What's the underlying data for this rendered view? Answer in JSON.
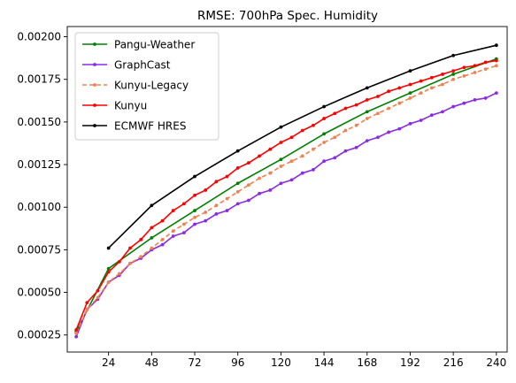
{
  "chart_data": {
    "type": "line",
    "title": "RMSE: 700hPa Spec. Humidity",
    "xlabel": "",
    "ylabel": "",
    "xlim": [
      1,
      246
    ],
    "ylim": [
      0.00015,
      0.00206
    ],
    "x_ticks": [
      24,
      48,
      72,
      96,
      120,
      144,
      168,
      192,
      216,
      240
    ],
    "y_ticks": [
      0.00025,
      0.0005,
      0.00075,
      0.001,
      0.00125,
      0.0015,
      0.00175,
      0.002
    ],
    "y_tick_labels": [
      "0.00025",
      "0.00050",
      "0.00075",
      "0.00100",
      "0.00125",
      "0.00150",
      "0.00175",
      "0.00200"
    ],
    "grid": false,
    "legend_position": "upper-left",
    "series": [
      {
        "name": "Pangu-Weather",
        "color": "#008000",
        "style": "solid",
        "x": [
          6,
          24,
          48,
          72,
          96,
          120,
          144,
          168,
          192,
          216,
          240
        ],
        "y": [
          0.00027,
          0.00064,
          0.00082,
          0.00098,
          0.00114,
          0.00128,
          0.00143,
          0.00156,
          0.00167,
          0.00178,
          0.00187
        ]
      },
      {
        "name": "GraphCast",
        "color": "#8a2be2",
        "style": "solid",
        "x": [
          6,
          12,
          18,
          24,
          30,
          36,
          42,
          48,
          54,
          60,
          66,
          72,
          78,
          84,
          90,
          96,
          102,
          108,
          114,
          120,
          126,
          132,
          138,
          144,
          150,
          156,
          162,
          168,
          174,
          180,
          186,
          192,
          198,
          204,
          210,
          216,
          222,
          228,
          234,
          240
        ],
        "y": [
          0.00024,
          0.0004,
          0.00046,
          0.00056,
          0.0006,
          0.00067,
          0.0007,
          0.00075,
          0.00078,
          0.00083,
          0.00085,
          0.0009,
          0.00092,
          0.00096,
          0.00098,
          0.00102,
          0.00104,
          0.00108,
          0.0011,
          0.00114,
          0.00116,
          0.0012,
          0.00122,
          0.00127,
          0.00129,
          0.00133,
          0.00135,
          0.00139,
          0.00141,
          0.00144,
          0.00146,
          0.00149,
          0.00151,
          0.00154,
          0.00156,
          0.00159,
          0.00161,
          0.00163,
          0.00164,
          0.00167
        ]
      },
      {
        "name": "Kunyu-Legacy",
        "color": "#f08050",
        "style": "dashed",
        "x": [
          6,
          12,
          18,
          24,
          30,
          36,
          42,
          48,
          54,
          60,
          66,
          72,
          78,
          84,
          90,
          96,
          102,
          108,
          114,
          120,
          126,
          132,
          138,
          144,
          150,
          156,
          162,
          168,
          174,
          180,
          186,
          192,
          198,
          204,
          210,
          216,
          222,
          228,
          234,
          240
        ],
        "y": [
          0.00026,
          0.0004,
          0.00047,
          0.00056,
          0.00061,
          0.00067,
          0.00071,
          0.00076,
          0.00081,
          0.00086,
          0.0009,
          0.00094,
          0.00097,
          0.00101,
          0.00105,
          0.00109,
          0.00113,
          0.00117,
          0.0012,
          0.00124,
          0.00127,
          0.0013,
          0.00134,
          0.00138,
          0.00141,
          0.00145,
          0.00148,
          0.00152,
          0.00155,
          0.00158,
          0.00161,
          0.00164,
          0.00167,
          0.0017,
          0.00172,
          0.00175,
          0.00177,
          0.00179,
          0.00181,
          0.00183
        ]
      },
      {
        "name": "Kunyu",
        "color": "#ff0000",
        "style": "solid",
        "x": [
          6,
          12,
          18,
          24,
          30,
          36,
          42,
          48,
          54,
          60,
          66,
          72,
          78,
          84,
          90,
          96,
          102,
          108,
          114,
          120,
          126,
          132,
          138,
          144,
          150,
          156,
          162,
          168,
          174,
          180,
          186,
          192,
          198,
          204,
          210,
          216,
          222,
          228,
          234,
          240
        ],
        "y": [
          0.00028,
          0.00044,
          0.00051,
          0.00062,
          0.00068,
          0.00076,
          0.00081,
          0.00088,
          0.00092,
          0.00098,
          0.00102,
          0.00107,
          0.0011,
          0.00115,
          0.00118,
          0.00123,
          0.00126,
          0.0013,
          0.00134,
          0.00138,
          0.00141,
          0.00145,
          0.00148,
          0.00152,
          0.00155,
          0.00158,
          0.0016,
          0.00163,
          0.00165,
          0.00168,
          0.0017,
          0.00172,
          0.00174,
          0.00176,
          0.00178,
          0.0018,
          0.00182,
          0.00183,
          0.00185,
          0.00186
        ]
      },
      {
        "name": "ECMWF HRES",
        "color": "#000000",
        "style": "solid",
        "x": [
          24,
          48,
          72,
          96,
          120,
          144,
          168,
          192,
          216,
          240
        ],
        "y": [
          0.00076,
          0.00101,
          0.00118,
          0.00133,
          0.00147,
          0.00159,
          0.0017,
          0.0018,
          0.00189,
          0.00195
        ]
      }
    ]
  }
}
